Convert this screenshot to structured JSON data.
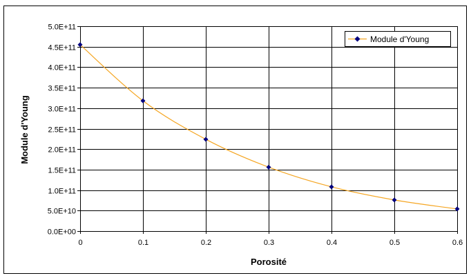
{
  "chart_data": {
    "type": "line",
    "title": "",
    "xlabel": "Porosité",
    "ylabel": "Module d'Young",
    "xlim": [
      0,
      0.6
    ],
    "ylim": [
      0,
      500000000000
    ],
    "xticks": [
      0,
      0.1,
      0.2,
      0.3,
      0.4,
      0.5,
      0.6
    ],
    "xtick_labels": [
      "0",
      "0.1",
      "0.2",
      "0.3",
      "0.4",
      "0.5",
      "0.6"
    ],
    "yticks": [
      0,
      50000000000,
      100000000000,
      150000000000,
      200000000000,
      250000000000,
      300000000000,
      350000000000,
      400000000000,
      450000000000,
      500000000000
    ],
    "ytick_labels": [
      "0.0E+00",
      "5.0E+10",
      "1.0E+11",
      "1.5E+11",
      "2.0E+11",
      "2.5E+11",
      "3.0E+11",
      "3.5E+11",
      "4.0E+11",
      "4.5E+11",
      "5.0E+11"
    ],
    "grid": true,
    "legend_position": "top-right",
    "series": [
      {
        "name": "Module d'Young",
        "x": [
          0,
          0.1,
          0.2,
          0.3,
          0.4,
          0.5,
          0.6
        ],
        "values": [
          455000000000,
          318000000000,
          224000000000,
          156000000000,
          108000000000,
          76000000000,
          54000000000
        ],
        "line_color": "#f5a623",
        "marker_color": "#00007f"
      }
    ]
  }
}
